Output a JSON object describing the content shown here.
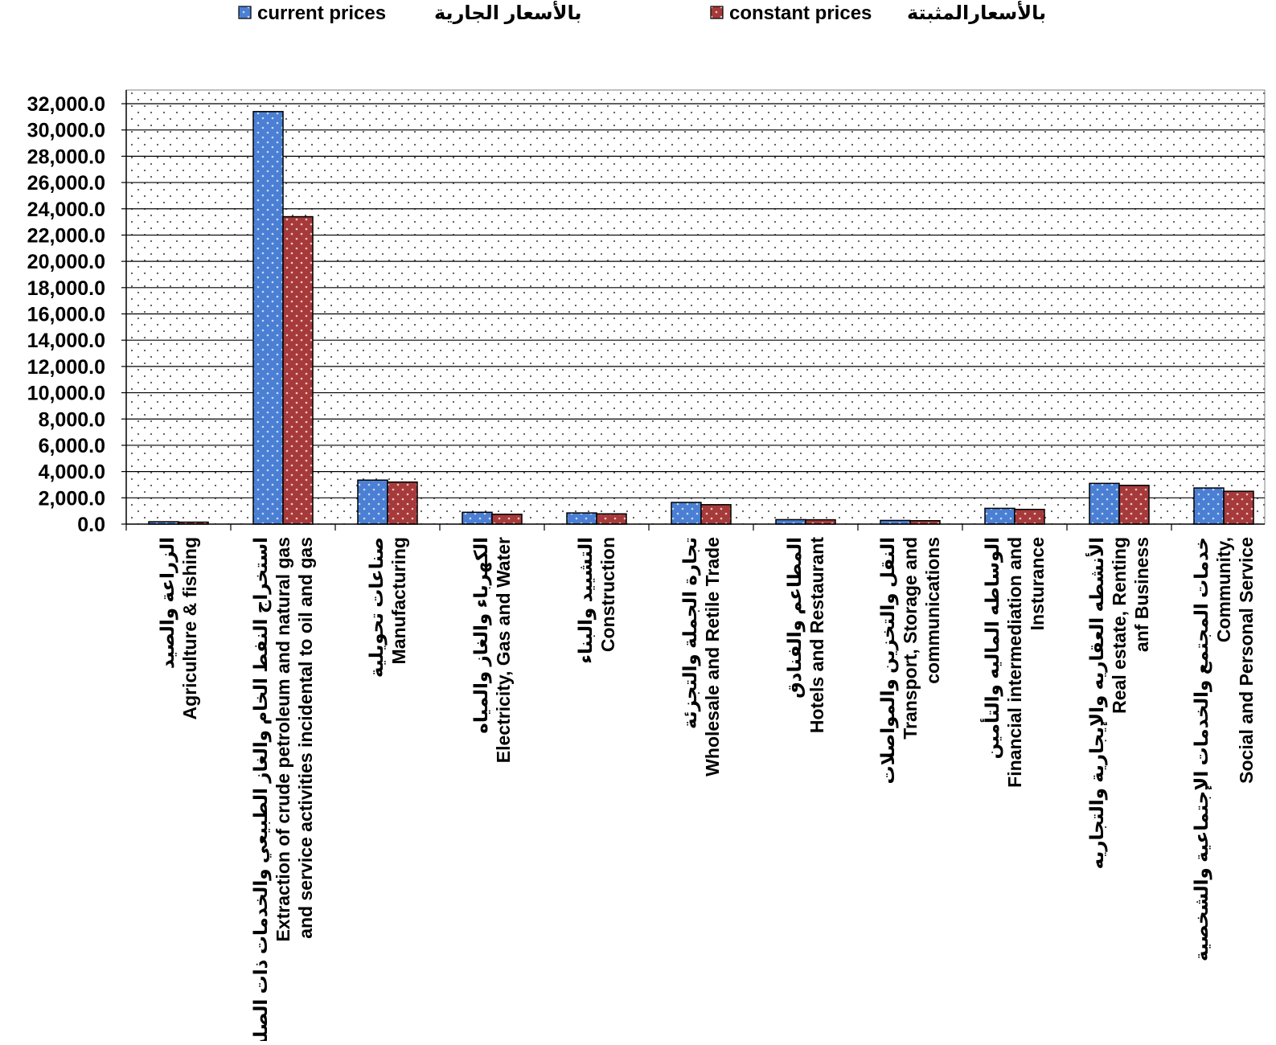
{
  "chart_data": {
    "type": "bar",
    "categories": [
      {
        "lines": [
          "الزراعة والصيد",
          "Agriculture & fishing"
        ]
      },
      {
        "lines": [
          "استخراج النفط الخام والغاز الطبيعي والخدمات ذات الصلة",
          "Extraction of crude petroleum and natural gas",
          "and service activities incidental to oil and gas"
        ]
      },
      {
        "lines": [
          "صناعات تحويلية",
          "Manufacturing"
        ]
      },
      {
        "lines": [
          "الكهرباء والغاز والمياه",
          "Electricity, Gas and Water"
        ]
      },
      {
        "lines": [
          "التشييد والبناء",
          "Construction"
        ]
      },
      {
        "lines": [
          "تجارة الجملة والتجزئة",
          "Wholesale and Retile Trade"
        ]
      },
      {
        "lines": [
          "المطاعم والفنادق",
          "Hotels and Restaurant"
        ]
      },
      {
        "lines": [
          "النقل والتخزين والمواصلات",
          "Transport, Storage and",
          "communications"
        ]
      },
      {
        "lines": [
          "الوساطه الماليه والتأمين",
          "Financial intermediation and",
          "Insturance"
        ]
      },
      {
        "lines": [
          "الأنشطه العقاريه والإيجارية والتجاريه",
          "Real estate, Renting",
          "anf Business"
        ]
      },
      {
        "lines": [
          "خدمات المجتمع والخدمات الإجتماعية والشخصية",
          "Community,",
          "Social and Personal Service"
        ]
      }
    ],
    "series": [
      {
        "name": "current prices",
        "name_ar": "بالأسعار الجارية",
        "color": "#4a7fd4",
        "dots": "#c9dcf5",
        "values": [
          180,
          31400,
          3350,
          900,
          850,
          1650,
          340,
          280,
          1200,
          3100,
          2750
        ]
      },
      {
        "name": "constant prices",
        "name_ar": "بالأسعارالمثبتة",
        "color": "#a63a3a",
        "dots": "#f0c8c8",
        "values": [
          150,
          23400,
          3200,
          750,
          780,
          1480,
          330,
          260,
          1120,
          2950,
          2500
        ]
      }
    ],
    "ylim": [
      0,
      32000
    ],
    "ytick_step": 2000,
    "ytick_labels": [
      "0.0",
      "2,000.0",
      "4,000.0",
      "6,000.0",
      "8,000.0",
      "10,000.0",
      "12,000.0",
      "14,000.0",
      "16,000.0",
      "18,000.0",
      "20,000.0",
      "22,000.0",
      "24,000.0",
      "26,000.0",
      "28,000.0",
      "30,000.0",
      "32,000.0"
    ],
    "grid": true,
    "legend_position": "top",
    "plot_background": "dotted"
  }
}
